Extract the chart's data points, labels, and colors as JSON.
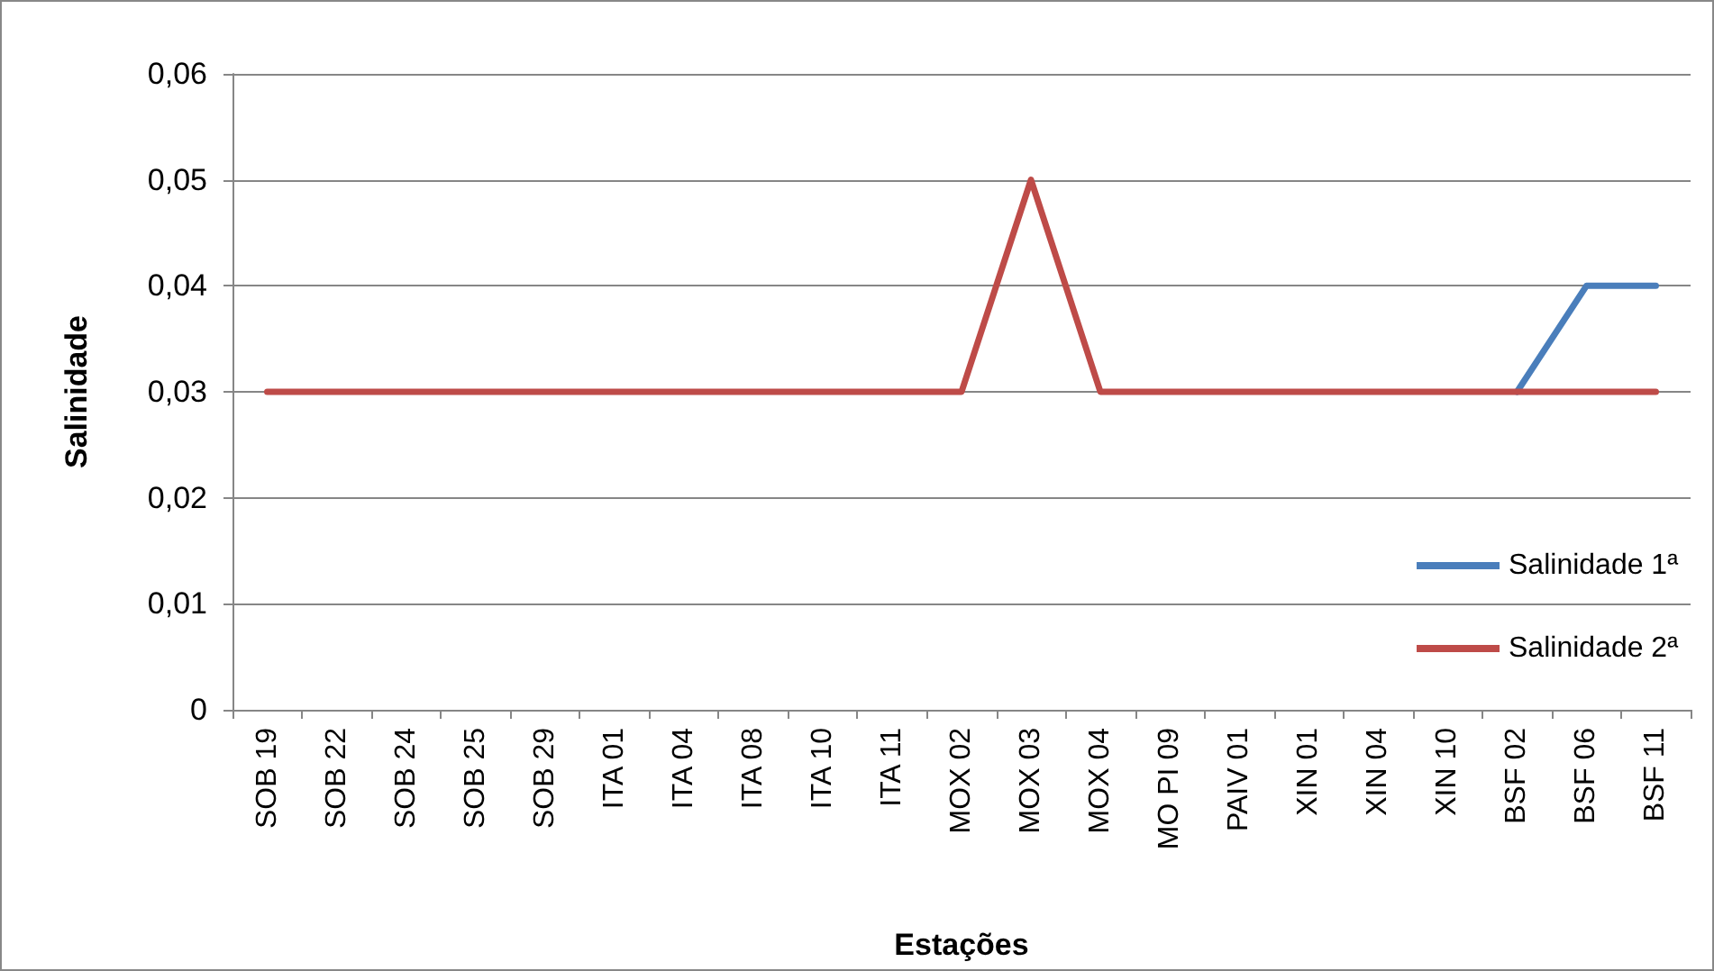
{
  "chart_data": {
    "type": "line",
    "xlabel": "Estações",
    "ylabel": "Salinidade",
    "categories": [
      "SOB 19",
      "SOB 22",
      "SOB 24",
      "SOB 25",
      "SOB 29",
      "ITA 01",
      "ITA 04",
      "ITA 08",
      "ITA 10",
      "ITA 11",
      "MOX 02",
      "MOX 03",
      "MOX 04",
      "MO PI 09",
      "PAIV 01",
      "XIN 01",
      "XIN 04",
      "XIN 10",
      "BSF 02",
      "BSF 06",
      "BSF 11"
    ],
    "series": [
      {
        "name": "Salinidade 1ª",
        "color": "#4a7ebb",
        "values": [
          null,
          null,
          null,
          null,
          null,
          null,
          null,
          null,
          null,
          null,
          null,
          null,
          null,
          null,
          null,
          null,
          null,
          null,
          0.03,
          0.04,
          0.04
        ]
      },
      {
        "name": "Salinidade 2ª",
        "color": "#be4b48",
        "values": [
          0.03,
          0.03,
          0.03,
          0.03,
          0.03,
          0.03,
          0.03,
          0.03,
          0.03,
          0.03,
          0.03,
          0.05,
          0.03,
          0.03,
          0.03,
          0.03,
          0.03,
          0.03,
          0.03,
          0.03,
          0.03
        ]
      }
    ],
    "ylim": [
      0,
      0.06
    ],
    "yticks": [
      0,
      {
        "value": 0.01,
        "label": "0,01"
      },
      {
        "value": 0.02,
        "label": "0,02"
      },
      {
        "value": 0.03,
        "label": "0,03"
      },
      {
        "value": 0.04,
        "label": "0,04"
      },
      {
        "value": 0.05,
        "label": "0,05"
      },
      {
        "value": 0.06,
        "label": "0,06"
      }
    ],
    "grid": "y",
    "legend": "right",
    "marker": "none",
    "line_style": "solid"
  }
}
